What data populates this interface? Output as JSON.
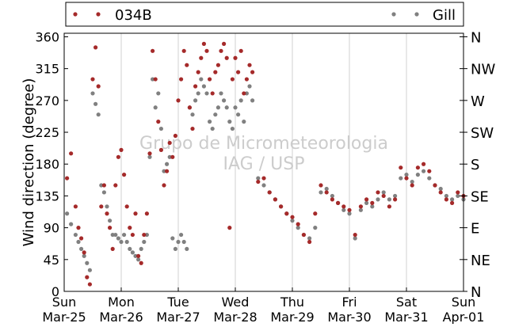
{
  "chart_data": {
    "type": "scatter",
    "title": "",
    "ylabel": "Wind direction (degree)",
    "xlabel": "",
    "watermark": [
      "Grupo de Micrometeorologia",
      "IAG / USP"
    ],
    "ylim": [
      0,
      365
    ],
    "xlim": [
      0,
      7
    ],
    "grid": true,
    "legend_position": "top",
    "yticks": [
      0,
      45,
      90,
      135,
      180,
      225,
      270,
      315,
      360
    ],
    "ytick_labels": [
      "0",
      "45",
      "90",
      "135",
      "180",
      "225",
      "270",
      "315",
      "360"
    ],
    "right_ticks": [
      0,
      45,
      90,
      135,
      180,
      225,
      270,
      315,
      360
    ],
    "right_tick_labels": [
      "N",
      "NE",
      "E",
      "SE",
      "S",
      "SW",
      "W",
      "NW",
      "N"
    ],
    "xticks": [
      0,
      1,
      2,
      3,
      4,
      5,
      6,
      7
    ],
    "xtick_labels": [
      [
        "Sun",
        "Mar-25"
      ],
      [
        "Mon",
        "Mar-26"
      ],
      [
        "Tue",
        "Mar-27"
      ],
      [
        "Wed",
        "Mar-28"
      ],
      [
        "Thu",
        "Mar-29"
      ],
      [
        "Fri",
        "Mar-30"
      ],
      [
        "Sat",
        "Mar-31"
      ],
      [
        "Sun",
        "Apr-01"
      ]
    ],
    "series": [
      {
        "name": "034B",
        "color": "#a52a2a",
        "x": [
          0.05,
          0.12,
          0.2,
          0.25,
          0.3,
          0.35,
          0.4,
          0.45,
          0.5,
          0.55,
          0.6,
          0.65,
          0.7,
          0.75,
          0.8,
          0.85,
          0.9,
          0.95,
          1.0,
          1.05,
          1.1,
          1.15,
          1.2,
          1.25,
          1.3,
          1.35,
          1.4,
          1.45,
          1.5,
          1.55,
          1.6,
          1.65,
          1.7,
          1.75,
          1.8,
          1.85,
          1.9,
          1.95,
          2.0,
          2.05,
          2.1,
          2.15,
          2.2,
          2.25,
          2.3,
          2.35,
          2.4,
          2.45,
          2.5,
          2.55,
          2.6,
          2.65,
          2.7,
          2.75,
          2.8,
          2.85,
          2.9,
          2.95,
          3.0,
          3.05,
          3.1,
          3.15,
          3.2,
          3.25,
          3.3,
          3.4,
          3.5,
          3.6,
          3.7,
          3.8,
          3.9,
          4.0,
          4.1,
          4.2,
          4.3,
          4.4,
          4.5,
          4.6,
          4.7,
          4.8,
          4.9,
          5.0,
          5.1,
          5.2,
          5.3,
          5.4,
          5.5,
          5.6,
          5.7,
          5.8,
          5.9,
          6.0,
          6.1,
          6.2,
          6.3,
          6.4,
          6.5,
          6.6,
          6.7,
          6.8,
          6.9,
          7.0
        ],
        "y": [
          160,
          195,
          120,
          90,
          75,
          55,
          20,
          10,
          300,
          345,
          290,
          120,
          150,
          110,
          90,
          60,
          150,
          190,
          200,
          165,
          120,
          90,
          80,
          110,
          50,
          40,
          80,
          110,
          195,
          340,
          300,
          240,
          200,
          150,
          170,
          210,
          190,
          220,
          270,
          300,
          340,
          320,
          260,
          230,
          290,
          310,
          330,
          350,
          340,
          300,
          280,
          310,
          320,
          340,
          350,
          330,
          90,
          300,
          330,
          310,
          340,
          280,
          300,
          320,
          310,
          155,
          160,
          140,
          130,
          120,
          110,
          105,
          95,
          80,
          70,
          110,
          150,
          140,
          130,
          125,
          120,
          115,
          80,
          120,
          130,
          125,
          140,
          135,
          120,
          130,
          175,
          160,
          150,
          175,
          180,
          170,
          150,
          140,
          130,
          125,
          140,
          135
        ]
      },
      {
        "name": "Gill",
        "color": "#808080",
        "x": [
          0.05,
          0.12,
          0.2,
          0.25,
          0.3,
          0.35,
          0.4,
          0.45,
          0.5,
          0.55,
          0.6,
          0.65,
          0.7,
          0.75,
          0.8,
          0.85,
          0.9,
          0.95,
          1.0,
          1.05,
          1.1,
          1.15,
          1.2,
          1.25,
          1.3,
          1.35,
          1.4,
          1.45,
          1.5,
          1.55,
          1.6,
          1.65,
          1.7,
          1.75,
          1.8,
          1.85,
          1.9,
          1.95,
          2.0,
          2.05,
          2.1,
          2.15,
          2.2,
          2.25,
          2.3,
          2.35,
          2.4,
          2.45,
          2.5,
          2.55,
          2.6,
          2.65,
          2.7,
          2.75,
          2.8,
          2.85,
          2.9,
          2.95,
          3.0,
          3.05,
          3.1,
          3.15,
          3.2,
          3.25,
          3.3,
          3.4,
          3.5,
          3.6,
          3.7,
          3.8,
          3.9,
          4.0,
          4.1,
          4.2,
          4.3,
          4.4,
          4.5,
          4.6,
          4.7,
          4.8,
          4.9,
          5.0,
          5.1,
          5.2,
          5.3,
          5.4,
          5.5,
          5.6,
          5.7,
          5.8,
          5.9,
          6.0,
          6.1,
          6.2,
          6.3,
          6.4,
          6.5,
          6.6,
          6.7,
          6.8,
          6.9,
          7.0
        ],
        "y": [
          110,
          95,
          80,
          70,
          60,
          50,
          40,
          30,
          280,
          265,
          250,
          150,
          140,
          120,
          100,
          80,
          80,
          75,
          70,
          80,
          70,
          60,
          55,
          50,
          45,
          60,
          70,
          80,
          190,
          300,
          260,
          280,
          230,
          170,
          180,
          190,
          75,
          60,
          70,
          80,
          70,
          60,
          260,
          250,
          270,
          280,
          300,
          290,
          280,
          240,
          230,
          250,
          260,
          280,
          270,
          260,
          240,
          230,
          260,
          250,
          270,
          240,
          280,
          290,
          270,
          160,
          150,
          140,
          130,
          120,
          110,
          100,
          90,
          80,
          75,
          90,
          140,
          145,
          135,
          125,
          115,
          110,
          75,
          115,
          125,
          120,
          130,
          140,
          130,
          135,
          160,
          165,
          155,
          165,
          170,
          160,
          150,
          145,
          135,
          130,
          135,
          130
        ]
      }
    ]
  }
}
